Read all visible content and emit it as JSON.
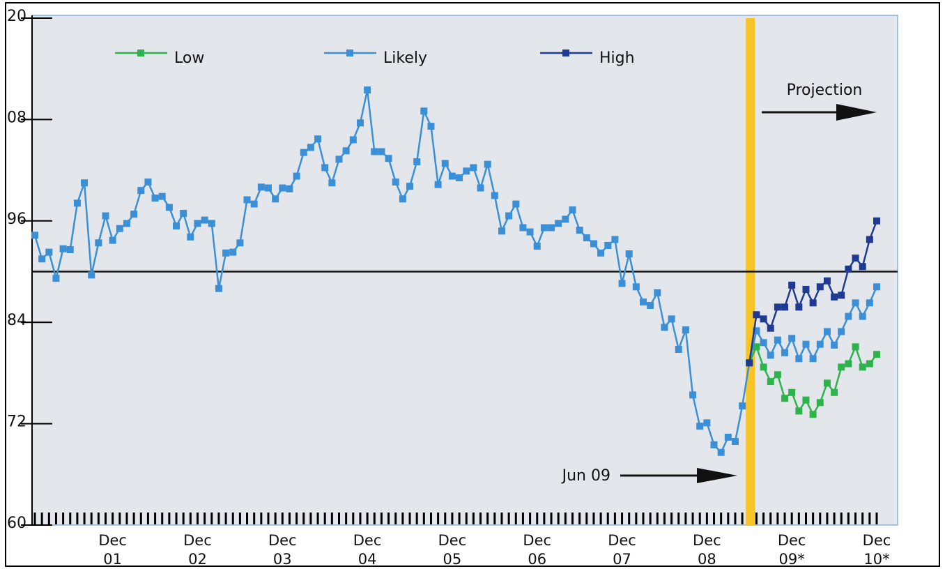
{
  "chart_data": {
    "type": "line",
    "categories": [
      null,
      null,
      null,
      null,
      null,
      null,
      null,
      null,
      null,
      null,
      null,
      "Dec\n01",
      null,
      null,
      null,
      null,
      null,
      null,
      null,
      null,
      null,
      null,
      null,
      "Dec\n02",
      null,
      null,
      null,
      null,
      null,
      null,
      null,
      null,
      null,
      null,
      null,
      "Dec\n03",
      null,
      null,
      null,
      null,
      null,
      null,
      null,
      null,
      null,
      null,
      null,
      "Dec\n04",
      null,
      null,
      null,
      null,
      null,
      null,
      null,
      null,
      null,
      null,
      null,
      "Dec\n05",
      null,
      null,
      null,
      null,
      null,
      null,
      null,
      null,
      null,
      null,
      null,
      "Dec\n06",
      null,
      null,
      null,
      null,
      null,
      null,
      null,
      null,
      null,
      null,
      null,
      "Dec\n07",
      null,
      null,
      null,
      null,
      null,
      null,
      null,
      null,
      null,
      null,
      null,
      "Dec\n08",
      null,
      null,
      null,
      null,
      null,
      null,
      null,
      null,
      null,
      null,
      null,
      "Dec\n09*",
      null,
      null,
      null,
      null,
      null,
      null,
      null,
      null,
      null,
      null,
      null,
      "Dec\n10*"
    ],
    "series": [
      {
        "name": "Low",
        "color": "#2db34a",
        "values": [
          null,
          null,
          null,
          null,
          null,
          null,
          null,
          null,
          null,
          null,
          null,
          null,
          null,
          null,
          null,
          null,
          null,
          null,
          null,
          null,
          null,
          null,
          null,
          null,
          null,
          null,
          null,
          null,
          null,
          null,
          null,
          null,
          null,
          null,
          null,
          null,
          null,
          null,
          null,
          null,
          null,
          null,
          null,
          null,
          null,
          null,
          null,
          null,
          null,
          null,
          null,
          null,
          null,
          null,
          null,
          null,
          null,
          null,
          null,
          null,
          null,
          null,
          null,
          null,
          null,
          null,
          null,
          null,
          null,
          null,
          null,
          null,
          null,
          null,
          null,
          null,
          null,
          null,
          null,
          null,
          null,
          null,
          null,
          null,
          null,
          null,
          null,
          null,
          null,
          null,
          null,
          null,
          null,
          null,
          null,
          null,
          null,
          null,
          null,
          null,
          null,
          79.2,
          81.1,
          78.7,
          77.0,
          77.8,
          75.0,
          75.7,
          73.5,
          74.8,
          73.1,
          74.5,
          76.8,
          75.7,
          78.7,
          79.1,
          81.1,
          78.7,
          79.1,
          80.2
        ]
      },
      {
        "name": "Likely",
        "color": "#3a8fd6",
        "values": [
          94.3,
          91.5,
          92.3,
          89.2,
          92.7,
          92.6,
          98.1,
          100.5,
          89.6,
          93.4,
          96.6,
          93.7,
          95.1,
          95.7,
          96.8,
          99.6,
          100.6,
          98.7,
          98.9,
          97.6,
          95.4,
          96.9,
          94.1,
          95.7,
          96.1,
          95.7,
          88.0,
          92.2,
          92.3,
          93.4,
          98.5,
          98.0,
          100.0,
          99.9,
          98.6,
          99.9,
          99.8,
          101.3,
          104.1,
          104.7,
          105.7,
          102.3,
          100.5,
          103.3,
          104.3,
          105.6,
          107.6,
          111.5,
          104.2,
          104.2,
          103.4,
          100.6,
          98.6,
          100.1,
          103.0,
          109.0,
          107.2,
          100.3,
          102.8,
          101.3,
          101.1,
          101.9,
          102.3,
          99.9,
          102.7,
          99.0,
          94.8,
          96.6,
          98.0,
          95.2,
          94.7,
          93.0,
          95.2,
          95.2,
          95.7,
          96.2,
          97.3,
          94.9,
          94.0,
          93.3,
          92.2,
          93.1,
          93.8,
          88.6,
          92.1,
          88.2,
          86.4,
          86.0,
          87.5,
          83.4,
          84.4,
          80.8,
          83.1,
          75.4,
          71.7,
          72.1,
          69.5,
          68.6,
          70.4,
          69.9,
          74.1,
          79.2,
          83.0,
          81.6,
          80.1,
          81.9,
          80.4,
          82.1,
          79.7,
          81.4,
          79.7,
          81.4,
          82.9,
          81.3,
          82.9,
          84.7,
          86.3,
          84.7,
          86.3,
          88.2
        ]
      },
      {
        "name": "High",
        "color": "#1f3a93",
        "values": [
          null,
          null,
          null,
          null,
          null,
          null,
          null,
          null,
          null,
          null,
          null,
          null,
          null,
          null,
          null,
          null,
          null,
          null,
          null,
          null,
          null,
          null,
          null,
          null,
          null,
          null,
          null,
          null,
          null,
          null,
          null,
          null,
          null,
          null,
          null,
          null,
          null,
          null,
          null,
          null,
          null,
          null,
          null,
          null,
          null,
          null,
          null,
          null,
          null,
          null,
          null,
          null,
          null,
          null,
          null,
          null,
          null,
          null,
          null,
          null,
          null,
          null,
          null,
          null,
          null,
          null,
          null,
          null,
          null,
          null,
          null,
          null,
          null,
          null,
          null,
          null,
          null,
          null,
          null,
          null,
          null,
          null,
          null,
          null,
          null,
          null,
          null,
          null,
          null,
          null,
          null,
          null,
          null,
          null,
          null,
          null,
          null,
          null,
          null,
          null,
          null,
          79.2,
          84.9,
          84.4,
          83.3,
          85.8,
          85.8,
          88.4,
          85.8,
          87.9,
          86.3,
          88.2,
          88.9,
          87.0,
          87.2,
          90.3,
          91.6,
          90.6,
          93.8,
          96.0
        ]
      }
    ],
    "ylim": [
      60,
      120
    ],
    "yticks": [
      {
        "value": 60,
        "label": "60"
      },
      72,
      84,
      96,
      {
        "value": 108,
        "label": "08"
      },
      {
        "value": 120,
        "label": "20"
      }
    ],
    "reference_line": 90,
    "annotations": [
      {
        "text": "Jun 09",
        "index": 101
      },
      {
        "text": "Projection"
      }
    ],
    "grid": false
  }
}
